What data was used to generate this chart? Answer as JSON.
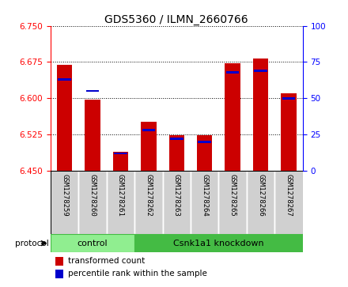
{
  "title": "GDS5360 / ILMN_2660766",
  "samples": [
    "GSM1278259",
    "GSM1278260",
    "GSM1278261",
    "GSM1278262",
    "GSM1278263",
    "GSM1278264",
    "GSM1278265",
    "GSM1278266",
    "GSM1278267"
  ],
  "transformed_counts": [
    6.67,
    6.598,
    6.49,
    6.552,
    6.523,
    6.524,
    6.672,
    6.683,
    6.61
  ],
  "percentile_ranks": [
    63,
    55,
    12,
    28,
    22,
    20,
    68,
    69,
    50
  ],
  "ylim_left": [
    6.45,
    6.75
  ],
  "ylim_right": [
    0,
    100
  ],
  "yticks_left": [
    6.45,
    6.525,
    6.6,
    6.675,
    6.75
  ],
  "yticks_right": [
    0,
    25,
    50,
    75,
    100
  ],
  "control_group": [
    0,
    1,
    2
  ],
  "knockdown_group": [
    3,
    4,
    5,
    6,
    7,
    8
  ],
  "control_label": "control",
  "knockdown_label": "Csnk1a1 knockdown",
  "protocol_label": "protocol",
  "bar_color_red": "#cc0000",
  "bar_color_blue": "#0000cc",
  "group_color": "#90EE90",
  "group_color_dark": "#44BB44",
  "xtick_bg": "#d0d0d0",
  "bar_width": 0.55,
  "baseline": 6.45,
  "legend_red": "transformed count",
  "legend_blue": "percentile rank within the sample",
  "title_fontsize": 10,
  "ytick_fontsize": 7.5,
  "xtick_fontsize": 6.5,
  "group_fontsize": 8
}
